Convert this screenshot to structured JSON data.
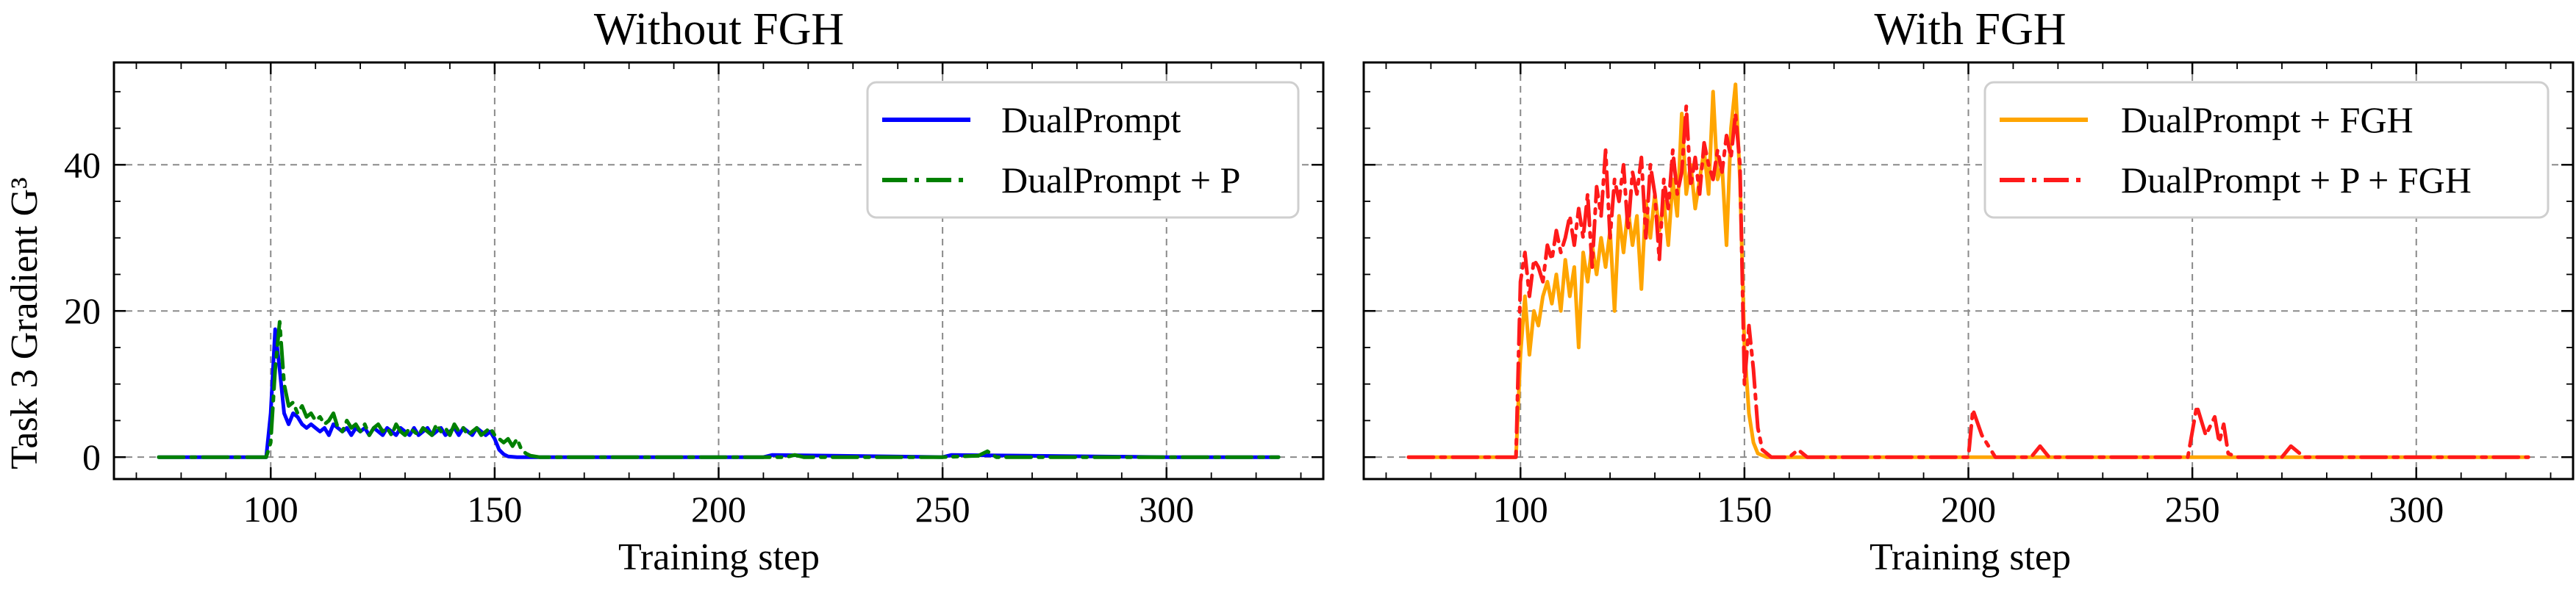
{
  "chart_data": [
    {
      "type": "line",
      "title": "Without FGH",
      "xlabel": "Training step",
      "ylabel": "Task 3 Gradient G³",
      "xlim": [
        65,
        335
      ],
      "ylim": [
        -3,
        54
      ],
      "xticks": [
        100,
        150,
        200,
        250,
        300
      ],
      "yticks": [
        0,
        20,
        40
      ],
      "grid": true,
      "legend_position": "top-right",
      "series": [
        {
          "name": "DualPrompt",
          "color": "#0000ff",
          "style": "solid",
          "x": [
            75,
            99,
            100,
            101,
            102,
            103,
            104,
            105,
            106,
            107,
            108,
            109,
            110,
            111,
            112,
            113,
            114,
            115,
            116,
            117,
            118,
            119,
            120,
            121,
            122,
            123,
            124,
            125,
            126,
            127,
            128,
            129,
            130,
            131,
            132,
            133,
            134,
            135,
            136,
            137,
            138,
            139,
            140,
            141,
            142,
            143,
            144,
            145,
            146,
            147,
            148,
            149,
            150,
            151,
            152,
            153,
            155,
            160,
            180,
            210,
            212,
            250,
            252,
            300,
            325
          ],
          "y": [
            0,
            0,
            6,
            17.5,
            12,
            6,
            4.5,
            6,
            5.5,
            4.5,
            4,
            4.5,
            4,
            3.5,
            4,
            3,
            4.5,
            4,
            3.5,
            4,
            3,
            4,
            3.5,
            4,
            3,
            4,
            3.5,
            3,
            4,
            3.5,
            3,
            4,
            3.5,
            3,
            4,
            3,
            3.5,
            4,
            3,
            3.5,
            4,
            3,
            3.5,
            4,
            3,
            4,
            3.5,
            3,
            4,
            3.5,
            3,
            3.5,
            2.5,
            1,
            0.4,
            0.1,
            0,
            0,
            0,
            0,
            0.3,
            0,
            0.3,
            0,
            0
          ]
        },
        {
          "name": "DualPrompt + P",
          "color": "#008000",
          "style": "dashdot",
          "x": [
            75,
            99,
            100,
            101,
            102,
            103,
            104,
            105,
            106,
            107,
            108,
            109,
            110,
            111,
            112,
            113,
            114,
            115,
            116,
            117,
            118,
            119,
            120,
            121,
            122,
            123,
            124,
            125,
            126,
            127,
            128,
            129,
            130,
            131,
            132,
            133,
            134,
            135,
            136,
            137,
            138,
            139,
            140,
            141,
            142,
            143,
            144,
            145,
            146,
            147,
            148,
            149,
            150,
            151,
            152,
            153,
            154,
            155,
            156,
            157,
            158,
            160,
            215,
            217,
            219,
            250,
            258,
            260,
            262,
            300,
            325
          ],
          "y": [
            0,
            0,
            2,
            12,
            18.5,
            10,
            7,
            7.5,
            6,
            7,
            5.5,
            6,
            5,
            5.5,
            4.5,
            5,
            6,
            4,
            3.5,
            5,
            4,
            4.5,
            3.5,
            4.5,
            3,
            4,
            4.5,
            3.5,
            4,
            3,
            4.5,
            3.5,
            3,
            4,
            3.5,
            3,
            4,
            3.5,
            3,
            4.5,
            3.5,
            4,
            3,
            4.5,
            3.5,
            4,
            3,
            3.5,
            4,
            3,
            3.5,
            4,
            3,
            2.5,
            2,
            2.5,
            1.5,
            2.5,
            1,
            0.5,
            0.2,
            0,
            0,
            0.3,
            0,
            0,
            0.2,
            0.8,
            0,
            0,
            0
          ]
        }
      ]
    },
    {
      "type": "line",
      "title": "With FGH",
      "xlabel": "Training step",
      "xlim": [
        65,
        335
      ],
      "ylim": [
        -3,
        54
      ],
      "xticks": [
        100,
        150,
        200,
        250,
        300
      ],
      "yticks": [
        0,
        20,
        40
      ],
      "grid": true,
      "legend_position": "top-right",
      "series": [
        {
          "name": "DualPrompt + FGH",
          "color": "#ffa500",
          "style": "solid",
          "x": [
            75,
            99,
            100,
            101,
            102,
            103,
            104,
            105,
            106,
            107,
            108,
            109,
            110,
            111,
            112,
            113,
            114,
            115,
            116,
            117,
            118,
            119,
            120,
            121,
            122,
            123,
            124,
            125,
            126,
            127,
            128,
            129,
            130,
            131,
            132,
            133,
            134,
            135,
            136,
            137,
            138,
            139,
            140,
            141,
            142,
            143,
            144,
            145,
            146,
            147,
            148,
            149,
            150,
            151,
            152,
            153,
            155,
            160,
            200,
            250,
            325
          ],
          "y": [
            0,
            0,
            14,
            22,
            14,
            20,
            18,
            22,
            24,
            21,
            25,
            20,
            27,
            22,
            26,
            15,
            28,
            24,
            29,
            25,
            30,
            26,
            31,
            20,
            33,
            28,
            34,
            29,
            33,
            23,
            35,
            30,
            36,
            31,
            35,
            29,
            38,
            33,
            47,
            36,
            40,
            34,
            38,
            42,
            36,
            50,
            38,
            40,
            29,
            45,
            51,
            38,
            15,
            6,
            2,
            0.5,
            0,
            0,
            0,
            0,
            0
          ]
        },
        {
          "name": "DualPrompt + P + FGH",
          "color": "#ff1a1a",
          "style": "dashdot",
          "x": [
            75,
            99,
            100,
            101,
            102,
            103,
            104,
            105,
            106,
            107,
            108,
            109,
            110,
            111,
            112,
            113,
            114,
            115,
            116,
            117,
            118,
            119,
            120,
            121,
            122,
            123,
            124,
            125,
            126,
            127,
            128,
            129,
            130,
            131,
            132,
            133,
            134,
            135,
            136,
            137,
            138,
            139,
            140,
            141,
            142,
            143,
            144,
            145,
            146,
            147,
            148,
            149,
            150,
            151,
            152,
            153,
            154,
            155,
            156,
            160,
            162,
            164,
            200,
            201,
            203,
            206,
            214,
            216,
            218,
            249,
            251,
            253,
            255,
            256,
            257,
            258,
            260,
            270,
            272,
            275,
            300,
            325
          ],
          "y": [
            0,
            0,
            24,
            28,
            22,
            27,
            26,
            24,
            29,
            27,
            31,
            28,
            30,
            33,
            29,
            34,
            30,
            36,
            26,
            37,
            33,
            42,
            30,
            38,
            35,
            40,
            31,
            39,
            36,
            41,
            30,
            40,
            36,
            27,
            38,
            34,
            42,
            36,
            39,
            48,
            37,
            41,
            36,
            43,
            40,
            38,
            42,
            39,
            44,
            41,
            47,
            40,
            10,
            18,
            12,
            4,
            1,
            0.5,
            0,
            0,
            1,
            0,
            0,
            6.5,
            3,
            0,
            0,
            1.5,
            0,
            0,
            7,
            3,
            5.5,
            2,
            4.5,
            0.5,
            0,
            0,
            1.5,
            0,
            0,
            0
          ]
        }
      ]
    }
  ]
}
